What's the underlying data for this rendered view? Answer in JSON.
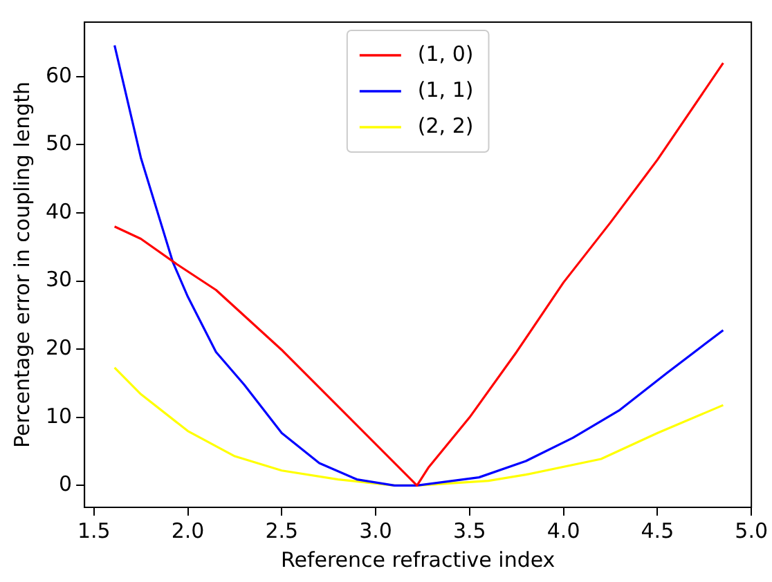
{
  "chart_data": {
    "type": "line",
    "xlabel": "Reference refractive index",
    "ylabel": "Percentage error in coupling length",
    "xlim": [
      1.45,
      5.0
    ],
    "xticks": [
      {
        "value": 1.5,
        "label": "1.5"
      },
      {
        "value": 2,
        "label": "2.0"
      },
      {
        "value": 2.5,
        "label": "2.5"
      },
      {
        "value": 3,
        "label": "3.0"
      },
      {
        "value": 3.5,
        "label": "3.5"
      },
      {
        "value": 4,
        "label": "4.0"
      },
      {
        "value": 4.5,
        "label": "4.5"
      },
      {
        "value": 5,
        "label": "5.0"
      }
    ],
    "ylim": [
      -3.2,
      68
    ],
    "yticks": [
      0,
      10,
      20,
      30,
      40,
      50,
      60
    ],
    "grid": false,
    "legend": "top",
    "marker": "none",
    "line_style": "solid",
    "series": [
      {
        "name": "(1, 0)",
        "color": "#ff0000",
        "x": [
          1.61,
          1.75,
          1.94,
          2.15,
          2.5,
          3.22,
          3.28,
          3.5,
          3.75,
          4.0,
          4.25,
          4.5,
          4.85
        ],
        "values": [
          38,
          36.2,
          32.5,
          28.7,
          19.9,
          0,
          2.6,
          10,
          19.6,
          29.8,
          38.6,
          47.8,
          62
        ]
      },
      {
        "name": "(1, 1)",
        "color": "#0000ff",
        "x": [
          1.61,
          1.75,
          1.92,
          2.0,
          2.15,
          2.3,
          2.5,
          2.7,
          2.9,
          3.1,
          3.22,
          3.55,
          3.8,
          4.05,
          4.3,
          4.55,
          4.85
        ],
        "values": [
          64.6,
          48.1,
          32.8,
          27.7,
          19.6,
          14.8,
          7.7,
          3.3,
          0.9,
          0,
          0,
          1.2,
          3.6,
          7,
          11.1,
          16.5,
          22.8
        ]
      },
      {
        "name": "(2, 2)",
        "color": "#ffff00",
        "x": [
          1.61,
          1.75,
          2.0,
          2.25,
          2.5,
          2.8,
          3.1,
          3.22,
          3.6,
          3.8,
          4.2,
          4.5,
          4.85
        ],
        "values": [
          17.3,
          13.4,
          8,
          4.3,
          2.2,
          0.9,
          0,
          0,
          0.7,
          1.6,
          3.9,
          7.7,
          11.8
        ]
      }
    ]
  }
}
